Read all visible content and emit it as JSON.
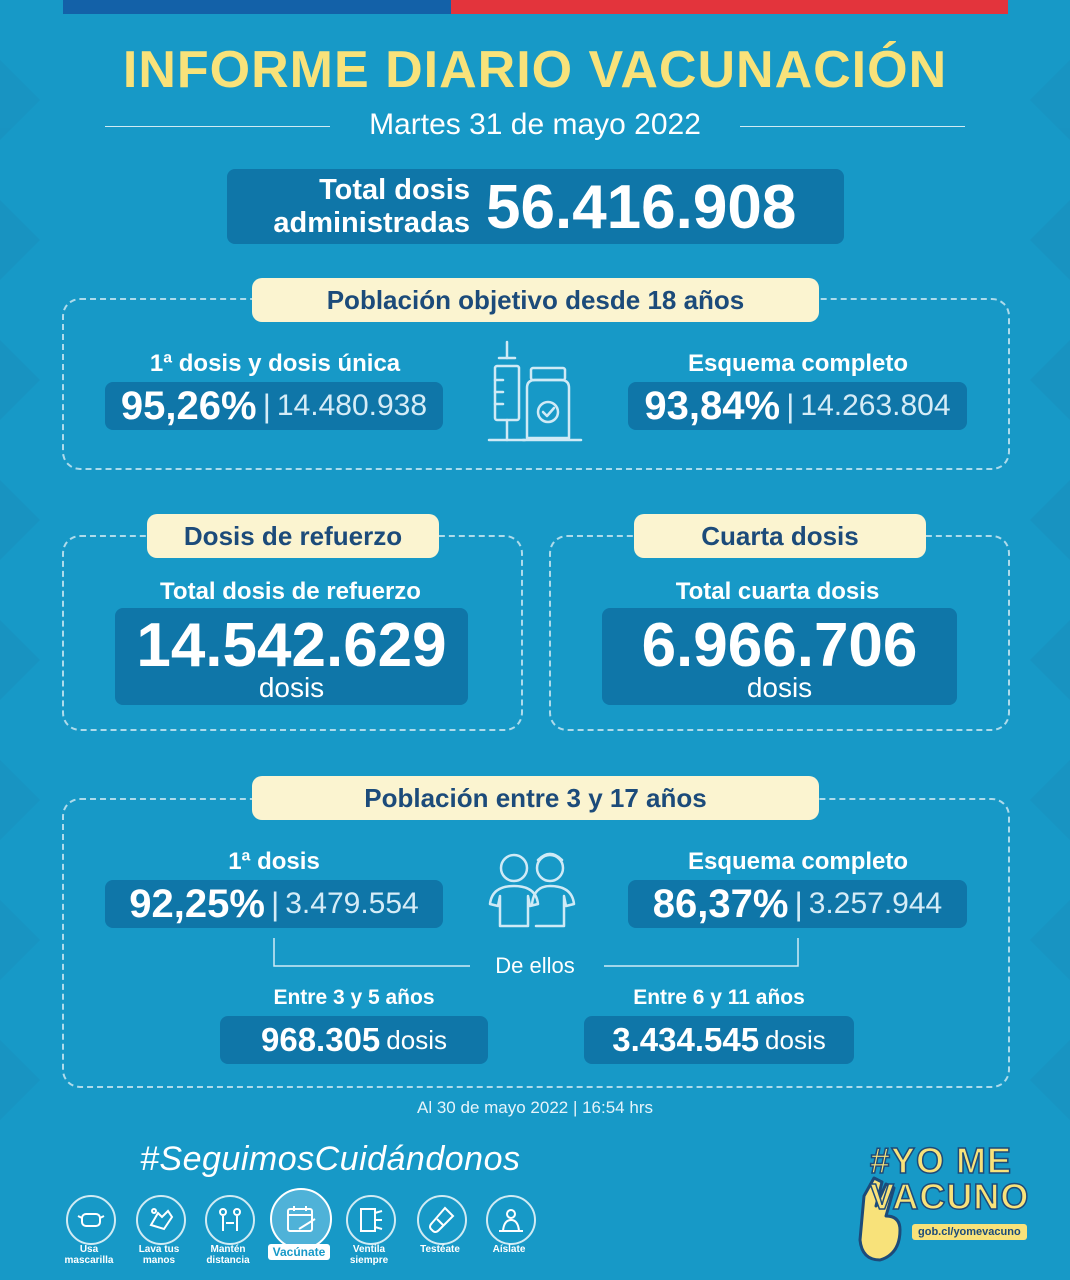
{
  "header": {
    "title": "INFORME DIARIO VACUNACIÓN",
    "date": "Martes 31 de mayo 2022"
  },
  "total": {
    "label_line1": "Total dosis",
    "label_line2": "administradas",
    "value": "56.416.908"
  },
  "adultos": {
    "heading": "Población objetivo desde 18 años",
    "primera": {
      "label": "1ª dosis y dosis única",
      "pct": "95,26%",
      "count": "14.480.938"
    },
    "completo": {
      "label": "Esquema completo",
      "pct": "93,84%",
      "count": "14.263.804"
    }
  },
  "refuerzo": {
    "heading": "Dosis de refuerzo",
    "label": "Total dosis de refuerzo",
    "value": "14.542.629",
    "unit": "dosis"
  },
  "cuarta": {
    "heading": "Cuarta dosis",
    "label": "Total cuarta dosis",
    "value": "6.966.706",
    "unit": "dosis"
  },
  "ninos": {
    "heading": "Población entre 3 y 17 años",
    "primera": {
      "label": "1ª dosis",
      "pct": "92,25%",
      "count": "3.479.554"
    },
    "completo": {
      "label": "Esquema completo",
      "pct": "86,37%",
      "count": "3.257.944"
    },
    "de_ellos": "De ellos",
    "grupo1": {
      "label": "Entre 3 y 5 años",
      "value": "968.305",
      "unit": "dosis"
    },
    "grupo2": {
      "label": "Entre 6 y 11 años",
      "value": "3.434.545",
      "unit": "dosis"
    }
  },
  "footer": {
    "timestamp": "Al 30 de mayo 2022 | 16:54 hrs",
    "hashtag": "#SeguimosCuidándonos",
    "icons": [
      {
        "icon": "mask-icon",
        "label_1": "Usa",
        "label_2": "mascarilla"
      },
      {
        "icon": "handwash-icon",
        "label_1": "Lava tus",
        "label_2": "manos"
      },
      {
        "icon": "distance-icon",
        "label_1": "Mantén",
        "label_2": "distancia"
      },
      {
        "icon": "calendar-syringe-icon",
        "label_1": "Vacúnate",
        "label_2": ""
      },
      {
        "icon": "window-icon",
        "label_1": "Ventila",
        "label_2": "siempre"
      },
      {
        "icon": "test-tube-icon",
        "label_1": "Testéate",
        "label_2": ""
      },
      {
        "icon": "isolate-icon",
        "label_1": "Aíslate",
        "label_2": ""
      }
    ],
    "logo": {
      "line1": "#YO ME",
      "line2": "VACUNO",
      "url": "gob.cl/yomevacuno"
    }
  },
  "colors": {
    "background": "#1799c7",
    "dark_box": "#0f76a8",
    "title_yellow": "#f8e27a",
    "pill": "#fbf4d0",
    "pill_text": "#1c4b7a",
    "flag_blue": "#1361a8",
    "flag_red": "#e3343c"
  }
}
